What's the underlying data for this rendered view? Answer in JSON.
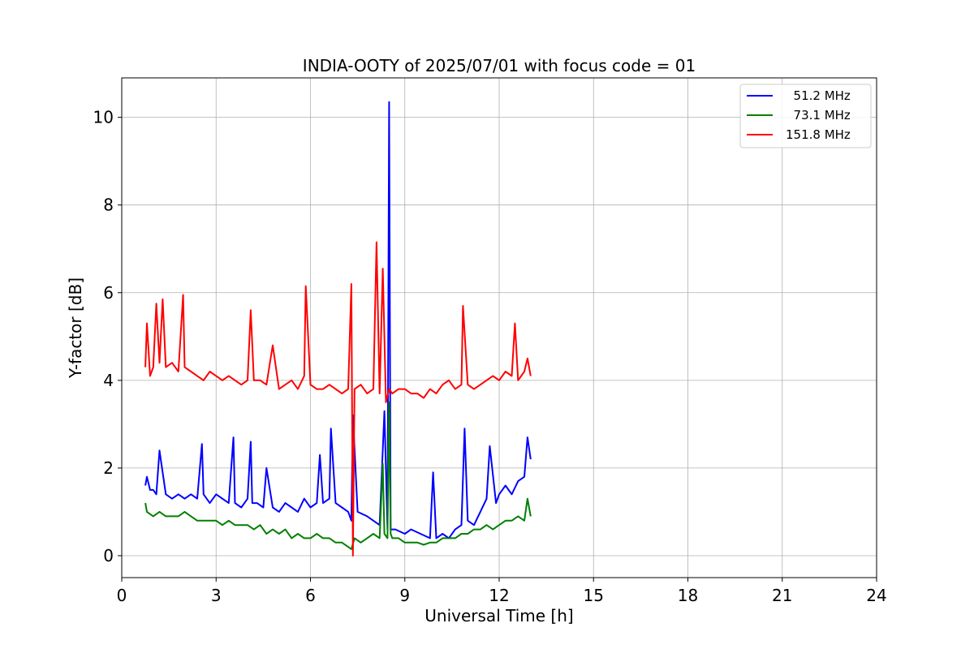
{
  "chart_data": {
    "type": "line",
    "title": "INDIA-OOTY of 2025/07/01 with focus code = 01",
    "xlabel": "Universal Time [h]",
    "ylabel": "Y-factor [dB]",
    "xlim": [
      0,
      24
    ],
    "ylim": [
      -0.5,
      10.9
    ],
    "xticks": [
      0,
      3,
      6,
      9,
      12,
      15,
      18,
      21,
      24
    ],
    "yticks": [
      0,
      2,
      4,
      6,
      8,
      10
    ],
    "grid": true,
    "legend": "top-right",
    "series": [
      {
        "name": "  51.2 MHz",
        "color": "#0000ff",
        "x": [
          0.75,
          0.8,
          0.9,
          1.0,
          1.1,
          1.2,
          1.4,
          1.6,
          1.8,
          2.0,
          2.2,
          2.4,
          2.55,
          2.6,
          2.8,
          3.0,
          3.2,
          3.4,
          3.55,
          3.6,
          3.8,
          4.0,
          4.1,
          4.15,
          4.3,
          4.5,
          4.6,
          4.8,
          5.0,
          5.2,
          5.4,
          5.6,
          5.8,
          6.0,
          6.2,
          6.3,
          6.4,
          6.6,
          6.65,
          6.8,
          7.0,
          7.2,
          7.3,
          7.35,
          7.5,
          7.8,
          8.0,
          8.2,
          8.35,
          8.45,
          8.5,
          8.55,
          8.7,
          9.0,
          9.2,
          9.5,
          9.8,
          9.9,
          10.0,
          10.2,
          10.4,
          10.6,
          10.8,
          10.9,
          11.0,
          11.2,
          11.4,
          11.6,
          11.7,
          11.9,
          12.0,
          12.2,
          12.4,
          12.6,
          12.8,
          12.9,
          13.0
        ],
        "y": [
          1.6,
          1.8,
          1.5,
          1.5,
          1.4,
          2.4,
          1.4,
          1.3,
          1.4,
          1.3,
          1.4,
          1.3,
          2.55,
          1.4,
          1.2,
          1.4,
          1.3,
          1.2,
          2.7,
          1.2,
          1.1,
          1.3,
          2.6,
          1.2,
          1.2,
          1.1,
          2.0,
          1.1,
          1.0,
          1.2,
          1.1,
          1.0,
          1.3,
          1.1,
          1.2,
          2.3,
          1.2,
          1.3,
          2.9,
          1.2,
          1.1,
          1.0,
          0.8,
          3.2,
          1.0,
          0.9,
          0.8,
          0.7,
          3.3,
          0.6,
          10.35,
          0.6,
          0.6,
          0.5,
          0.6,
          0.5,
          0.4,
          1.9,
          0.4,
          0.5,
          0.4,
          0.6,
          0.7,
          2.9,
          0.8,
          0.7,
          1.0,
          1.3,
          2.5,
          1.2,
          1.4,
          1.6,
          1.4,
          1.7,
          1.8,
          2.7,
          2.2
        ]
      },
      {
        "name": "  73.1 MHz",
        "color": "#008000",
        "x": [
          0.75,
          0.8,
          1.0,
          1.2,
          1.4,
          1.6,
          1.8,
          2.0,
          2.2,
          2.4,
          2.6,
          2.8,
          3.0,
          3.2,
          3.4,
          3.6,
          3.8,
          4.0,
          4.2,
          4.4,
          4.6,
          4.8,
          5.0,
          5.2,
          5.4,
          5.6,
          5.8,
          6.0,
          6.2,
          6.4,
          6.6,
          6.8,
          7.0,
          7.2,
          7.3,
          7.4,
          7.6,
          7.8,
          8.0,
          8.2,
          8.3,
          8.35,
          8.45,
          8.5,
          8.55,
          8.6,
          8.8,
          9.0,
          9.2,
          9.4,
          9.6,
          9.8,
          10.0,
          10.2,
          10.4,
          10.6,
          10.8,
          11.0,
          11.2,
          11.4,
          11.6,
          11.8,
          12.0,
          12.2,
          12.4,
          12.6,
          12.8,
          12.9,
          13.0
        ],
        "y": [
          1.2,
          1.0,
          0.9,
          1.0,
          0.9,
          0.9,
          0.9,
          1.0,
          0.9,
          0.8,
          0.8,
          0.8,
          0.8,
          0.7,
          0.8,
          0.7,
          0.7,
          0.7,
          0.6,
          0.7,
          0.5,
          0.6,
          0.5,
          0.6,
          0.4,
          0.5,
          0.4,
          0.4,
          0.5,
          0.4,
          0.4,
          0.3,
          0.3,
          0.2,
          0.15,
          0.4,
          0.3,
          0.4,
          0.5,
          0.4,
          2.1,
          0.5,
          0.4,
          3.5,
          0.5,
          0.4,
          0.4,
          0.3,
          0.3,
          0.3,
          0.25,
          0.3,
          0.3,
          0.4,
          0.4,
          0.4,
          0.5,
          0.5,
          0.6,
          0.6,
          0.7,
          0.6,
          0.7,
          0.8,
          0.8,
          0.9,
          0.8,
          1.3,
          0.9
        ]
      },
      {
        "name": "151.8 MHz",
        "color": "#ff0000",
        "x": [
          0.75,
          0.8,
          0.9,
          1.0,
          1.1,
          1.2,
          1.3,
          1.4,
          1.6,
          1.8,
          1.95,
          2.0,
          2.2,
          2.4,
          2.6,
          2.8,
          3.0,
          3.2,
          3.4,
          3.6,
          3.8,
          4.0,
          4.1,
          4.2,
          4.4,
          4.6,
          4.8,
          5.0,
          5.2,
          5.4,
          5.6,
          5.8,
          5.85,
          6.0,
          6.2,
          6.4,
          6.6,
          6.8,
          7.0,
          7.2,
          7.3,
          7.35,
          7.4,
          7.6,
          7.8,
          8.0,
          8.1,
          8.2,
          8.3,
          8.4,
          8.5,
          8.6,
          8.8,
          9.0,
          9.2,
          9.4,
          9.6,
          9.8,
          10.0,
          10.2,
          10.4,
          10.6,
          10.8,
          10.85,
          11.0,
          11.2,
          11.4,
          11.6,
          11.8,
          12.0,
          12.2,
          12.4,
          12.5,
          12.6,
          12.8,
          12.9,
          13.0
        ],
        "y": [
          4.3,
          5.3,
          4.1,
          4.3,
          5.75,
          4.4,
          5.85,
          4.3,
          4.4,
          4.2,
          5.95,
          4.3,
          4.2,
          4.1,
          4.0,
          4.2,
          4.1,
          4.0,
          4.1,
          4.0,
          3.9,
          4.0,
          5.6,
          4.0,
          4.0,
          3.9,
          4.8,
          3.8,
          3.9,
          4.0,
          3.8,
          4.1,
          6.15,
          3.9,
          3.8,
          3.8,
          3.9,
          3.8,
          3.7,
          3.8,
          6.2,
          0.0,
          3.8,
          3.9,
          3.7,
          3.8,
          7.15,
          3.7,
          6.55,
          3.5,
          3.8,
          3.7,
          3.8,
          3.8,
          3.7,
          3.7,
          3.6,
          3.8,
          3.7,
          3.9,
          4.0,
          3.8,
          3.9,
          5.7,
          3.9,
          3.8,
          3.9,
          4.0,
          4.1,
          4.0,
          4.2,
          4.1,
          5.3,
          4.0,
          4.2,
          4.5,
          4.1
        ]
      }
    ]
  }
}
